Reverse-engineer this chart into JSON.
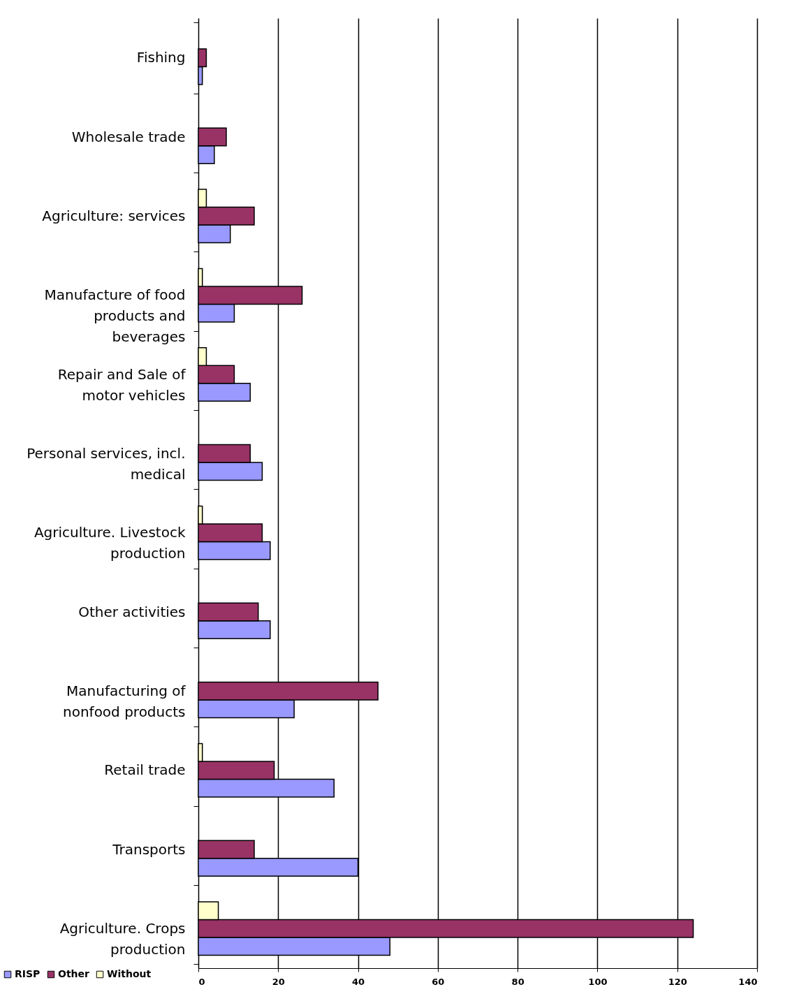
{
  "chart_data": {
    "type": "bar",
    "orientation": "horizontal",
    "categories": [
      "Fishing",
      "Wholesale trade",
      "Agriculture: services",
      "Manufacture of food products and beverages",
      "Repair and Sale of motor vehicles",
      "Personal services, incl. medical",
      "Agriculture. Livestock production",
      "Other activities",
      "Manufacturing of nonfood products",
      "Retail trade",
      "Transports",
      "Agriculture. Crops production"
    ],
    "series": [
      {
        "name": "RISP",
        "color": "#9999ff",
        "values": [
          1,
          4,
          8,
          9,
          13,
          16,
          18,
          18,
          24,
          34,
          40,
          48
        ]
      },
      {
        "name": "Other",
        "color": "#993366",
        "values": [
          2,
          7,
          14,
          26,
          9,
          13,
          16,
          15,
          45,
          19,
          14,
          124
        ]
      },
      {
        "name": "Without",
        "color": "#ffffcc",
        "values": [
          null,
          null,
          2,
          1,
          2,
          null,
          1,
          null,
          null,
          1,
          null,
          5
        ]
      }
    ],
    "xlim": [
      0,
      140
    ],
    "xticks": [
      0,
      20,
      40,
      60,
      80,
      100,
      120,
      140
    ],
    "grid": "x",
    "legend": "bottom left"
  }
}
